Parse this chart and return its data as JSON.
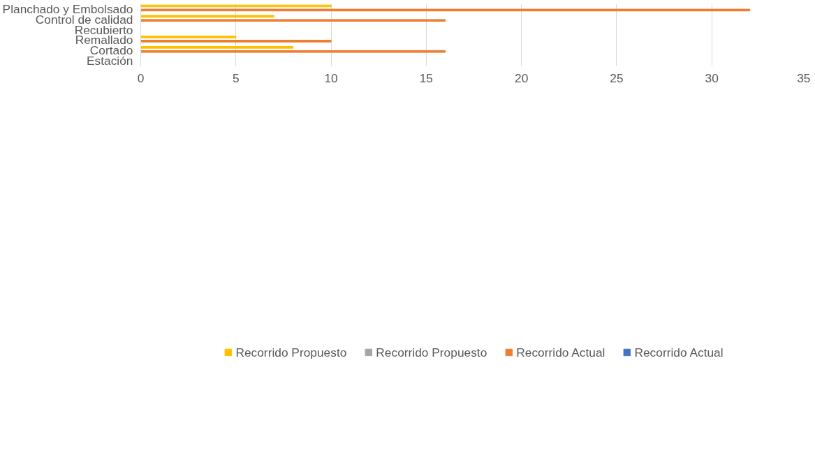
{
  "chart_data": {
    "type": "bar",
    "orientation": "horizontal",
    "categories": [
      "Planchado y Embolsado",
      "Control de calidad",
      "Recubierto",
      "Remallado",
      "Cortado",
      "Estación"
    ],
    "series": [
      {
        "name": "Recorrido Propuesto",
        "color": "#ffc000",
        "values": [
          10,
          7,
          0,
          5,
          8,
          0
        ]
      },
      {
        "name": "Recorrido Propuesto",
        "color": "#a5a5a5",
        "values": [
          0,
          0,
          0,
          0,
          0,
          0
        ]
      },
      {
        "name": "Recorrido Actual",
        "color": "#ed7d31",
        "values": [
          32,
          16,
          0,
          10,
          16,
          0
        ]
      },
      {
        "name": "Recorrido Actual",
        "color": "#4472c4",
        "values": [
          0,
          0,
          0,
          0,
          0,
          0
        ]
      }
    ],
    "xlim": [
      0,
      35
    ],
    "xticks": [
      0,
      5,
      10,
      15,
      20,
      25,
      30,
      35
    ],
    "grid": "x",
    "legend": "bottom"
  }
}
